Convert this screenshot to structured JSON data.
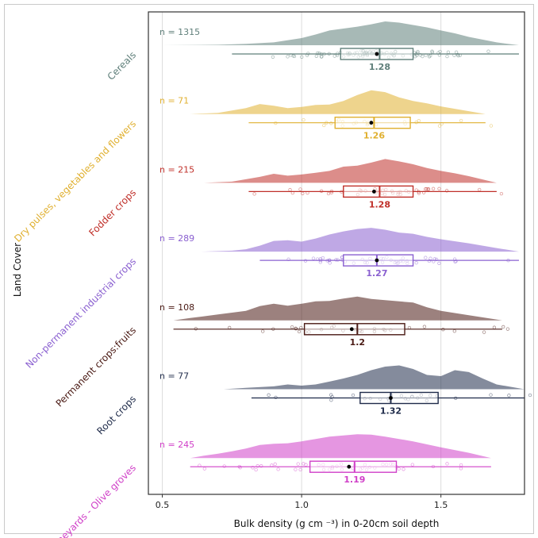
{
  "chart_data": {
    "type": "raincloud",
    "title": "",
    "xlabel": "Bulk density (g cm ⁻³) in 0-20cm soil depth",
    "ylabel": "Land Cover",
    "xlim": [
      0.45,
      1.8
    ],
    "xticks": [
      0.5,
      1.0,
      1.5
    ],
    "xtick_labels": [
      "0.5",
      "1.0",
      "1.5"
    ],
    "grid": "vertical",
    "categories": [
      {
        "name": "Cereals",
        "color": "#5f7f7a",
        "n_label": "n = 1315",
        "median_label": "1.28",
        "median": 1.28,
        "mean": 1.27,
        "q1": 1.14,
        "q3": 1.4,
        "whisker_low": 0.75,
        "whisker_high": 1.78,
        "kde_x": [
          0.5,
          0.6,
          0.7,
          0.8,
          0.9,
          1.0,
          1.05,
          1.1,
          1.15,
          1.2,
          1.25,
          1.3,
          1.35,
          1.4,
          1.45,
          1.5,
          1.55,
          1.6,
          1.7,
          1.78
        ],
        "kde_y": [
          0.0,
          0.01,
          0.02,
          0.06,
          0.12,
          0.3,
          0.45,
          0.62,
          0.7,
          0.78,
          0.88,
          1.0,
          0.95,
          0.85,
          0.75,
          0.62,
          0.5,
          0.35,
          0.12,
          0.0
        ]
      },
      {
        "name": "Dry pulses, vegetables and flowers",
        "color": "#e0b030",
        "n_label": "n = 71",
        "median_label": "1.26",
        "median": 1.26,
        "mean": 1.25,
        "q1": 1.12,
        "q3": 1.39,
        "whisker_low": 0.81,
        "whisker_high": 1.66,
        "kde_x": [
          0.6,
          0.7,
          0.8,
          0.85,
          0.9,
          0.95,
          1.0,
          1.05,
          1.1,
          1.15,
          1.2,
          1.25,
          1.3,
          1.35,
          1.4,
          1.45,
          1.5,
          1.55,
          1.6,
          1.66
        ],
        "kde_y": [
          0.0,
          0.05,
          0.25,
          0.42,
          0.35,
          0.25,
          0.3,
          0.38,
          0.4,
          0.55,
          0.8,
          1.0,
          0.92,
          0.7,
          0.55,
          0.45,
          0.32,
          0.22,
          0.12,
          0.0
        ]
      },
      {
        "name": "Fodder crops",
        "color": "#c0302a",
        "n_label": "n = 215",
        "median_label": "1.28",
        "median": 1.28,
        "mean": 1.26,
        "q1": 1.15,
        "q3": 1.4,
        "whisker_low": 0.81,
        "whisker_high": 1.7,
        "kde_x": [
          0.65,
          0.75,
          0.8,
          0.85,
          0.9,
          0.95,
          1.0,
          1.05,
          1.1,
          1.15,
          1.2,
          1.25,
          1.3,
          1.35,
          1.4,
          1.45,
          1.5,
          1.55,
          1.6,
          1.7
        ],
        "kde_y": [
          0.0,
          0.05,
          0.15,
          0.25,
          0.38,
          0.3,
          0.35,
          0.42,
          0.5,
          0.68,
          0.72,
          0.85,
          1.0,
          0.9,
          0.78,
          0.62,
          0.5,
          0.4,
          0.28,
          0.0
        ]
      },
      {
        "name": "Non-permanent industrial crops",
        "color": "#8a60d0",
        "n_label": "n = 289",
        "median_label": "1.27",
        "median": 1.27,
        "mean": 1.27,
        "q1": 1.15,
        "q3": 1.4,
        "whisker_low": 0.85,
        "whisker_high": 1.78,
        "kde_x": [
          0.64,
          0.75,
          0.8,
          0.85,
          0.9,
          0.95,
          1.0,
          1.05,
          1.1,
          1.15,
          1.2,
          1.25,
          1.3,
          1.35,
          1.4,
          1.45,
          1.5,
          1.6,
          1.7,
          1.78
        ],
        "kde_y": [
          0.0,
          0.04,
          0.1,
          0.25,
          0.45,
          0.48,
          0.42,
          0.55,
          0.72,
          0.85,
          0.95,
          1.0,
          0.92,
          0.8,
          0.75,
          0.62,
          0.52,
          0.35,
          0.15,
          0.0
        ]
      },
      {
        "name": "Permanent crops:fruits",
        "color": "#4a1a14",
        "n_label": "n = 108",
        "median_label": "1.2",
        "median": 1.2,
        "mean": 1.18,
        "q1": 1.01,
        "q3": 1.37,
        "whisker_low": 0.54,
        "whisker_high": 1.72,
        "kde_x": [
          0.54,
          0.6,
          0.7,
          0.8,
          0.85,
          0.9,
          0.95,
          1.0,
          1.05,
          1.1,
          1.15,
          1.2,
          1.25,
          1.3,
          1.35,
          1.4,
          1.45,
          1.5,
          1.6,
          1.72
        ],
        "kde_y": [
          0.0,
          0.1,
          0.25,
          0.4,
          0.6,
          0.7,
          0.62,
          0.7,
          0.8,
          0.82,
          0.92,
          1.0,
          0.9,
          0.85,
          0.8,
          0.75,
          0.55,
          0.4,
          0.22,
          0.0
        ]
      },
      {
        "name": "Root crops",
        "color": "#1f2b4a",
        "n_label": "n = 77",
        "median_label": "1.32",
        "median": 1.32,
        "mean": 1.32,
        "q1": 1.21,
        "q3": 1.49,
        "whisker_low": 0.82,
        "whisker_high": 1.8,
        "kde_x": [
          0.72,
          0.8,
          0.9,
          0.95,
          1.0,
          1.05,
          1.1,
          1.15,
          1.2,
          1.25,
          1.3,
          1.35,
          1.4,
          1.45,
          1.5,
          1.55,
          1.6,
          1.65,
          1.7,
          1.8
        ],
        "kde_y": [
          0.0,
          0.06,
          0.12,
          0.2,
          0.15,
          0.2,
          0.32,
          0.45,
          0.6,
          0.8,
          0.95,
          1.0,
          0.85,
          0.6,
          0.55,
          0.8,
          0.72,
          0.45,
          0.2,
          0.0
        ]
      },
      {
        "name": "Vineyards - Olive groves",
        "color": "#d040c8",
        "n_label": "n = 245",
        "median_label": "1.19",
        "median": 1.19,
        "mean": 1.17,
        "q1": 1.03,
        "q3": 1.34,
        "whisker_low": 0.6,
        "whisker_high": 1.68,
        "kde_x": [
          0.6,
          0.65,
          0.7,
          0.75,
          0.8,
          0.85,
          0.9,
          0.95,
          1.0,
          1.05,
          1.1,
          1.15,
          1.2,
          1.25,
          1.3,
          1.35,
          1.4,
          1.5,
          1.6,
          1.68
        ],
        "kde_y": [
          0.0,
          0.1,
          0.18,
          0.28,
          0.4,
          0.55,
          0.6,
          0.62,
          0.7,
          0.8,
          0.9,
          0.95,
          1.0,
          0.98,
          0.9,
          0.8,
          0.7,
          0.45,
          0.22,
          0.0
        ]
      }
    ]
  }
}
